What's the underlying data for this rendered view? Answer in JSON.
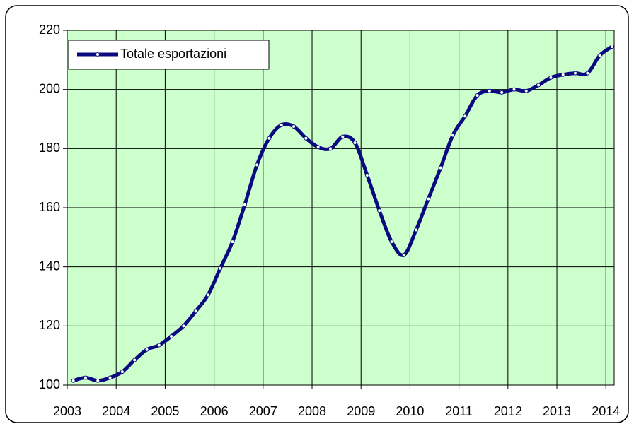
{
  "chart_data": {
    "type": "line",
    "x": [
      2003.125,
      2003.375,
      2003.625,
      2003.875,
      2004.125,
      2004.375,
      2004.625,
      2004.875,
      2005.125,
      2005.375,
      2005.625,
      2005.875,
      2006.125,
      2006.375,
      2006.625,
      2006.875,
      2007.125,
      2007.375,
      2007.625,
      2007.875,
      2008.125,
      2008.375,
      2008.625,
      2008.875,
      2009.125,
      2009.375,
      2009.625,
      2009.875,
      2010.125,
      2010.375,
      2010.625,
      2010.875,
      2011.125,
      2011.375,
      2011.625,
      2011.875,
      2012.125,
      2012.375,
      2012.625,
      2012.875,
      2013.125,
      2013.375,
      2013.625,
      2013.875,
      2014.125
    ],
    "series": [
      {
        "name": "Totale esportazioni",
        "color": "#0a0a80",
        "values": [
          101.5,
          102.5,
          101.5,
          102.5,
          104.5,
          108.5,
          112,
          113.5,
          116.5,
          120,
          125,
          130.5,
          139.5,
          148.5,
          161,
          174.5,
          183.5,
          188,
          187.5,
          183.5,
          180.5,
          180,
          184,
          182,
          171,
          159,
          148.5,
          144,
          152.5,
          163,
          173.5,
          184.5,
          191,
          198,
          199.5,
          199,
          200,
          199.5,
          201.5,
          204,
          205,
          205.5,
          205.5,
          211.5,
          214.5
        ]
      }
    ],
    "xlim": [
      2003,
      2014.17
    ],
    "xticks": [
      2003,
      2004,
      2005,
      2006,
      2007,
      2008,
      2009,
      2010,
      2011,
      2012,
      2013,
      2014
    ],
    "ylim": [
      100,
      220
    ],
    "yticks": [
      100,
      120,
      140,
      160,
      180,
      200,
      220
    ],
    "grid": true,
    "legend": "top-left",
    "plot_background": "#ccffcc"
  }
}
